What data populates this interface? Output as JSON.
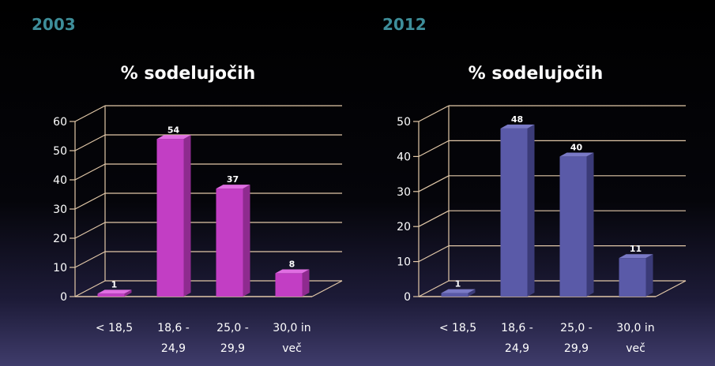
{
  "chart_data": [
    {
      "type": "bar",
      "year_label": "2003",
      "title": "% sodelujočih",
      "categories": [
        [
          "< 18,5"
        ],
        [
          "18,6 -",
          "24,9"
        ],
        [
          "25,0 -",
          "29,9"
        ],
        [
          "30,0 in",
          "več"
        ]
      ],
      "values": [
        1,
        54,
        37,
        8
      ],
      "value_labels": [
        "1",
        "54",
        "37",
        "8"
      ],
      "ylim": [
        0,
        60
      ],
      "yticks": [
        "0",
        "10",
        "20",
        "30",
        "40",
        "50",
        "60"
      ],
      "grid": true,
      "colors": {
        "front": "#c23ec4",
        "side": "#8e2b8f",
        "top": "#e06ee2"
      }
    },
    {
      "type": "bar",
      "year_label": "2012",
      "title": "% sodelujočih",
      "categories": [
        [
          "< 18,5"
        ],
        [
          "18,6 -",
          "24,9"
        ],
        [
          "25,0 -",
          "29,9"
        ],
        [
          "30,0 in",
          "več"
        ]
      ],
      "values": [
        1,
        48,
        40,
        11
      ],
      "value_labels": [
        "1",
        "48",
        "40",
        "11"
      ],
      "ylim": [
        0,
        50
      ],
      "yticks": [
        "0",
        "10",
        "20",
        "30",
        "40",
        "50"
      ],
      "grid": true,
      "colors": {
        "front": "#5a5aa8",
        "side": "#3b3b78",
        "top": "#7a7ac6"
      }
    }
  ]
}
